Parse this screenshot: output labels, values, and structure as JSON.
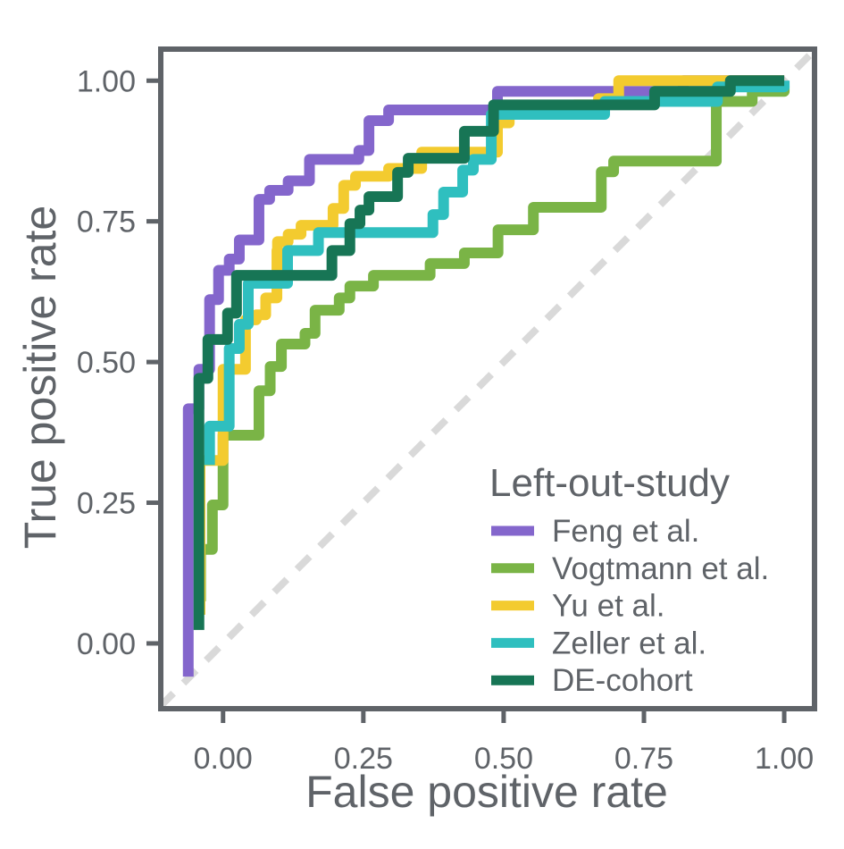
{
  "chart_data": {
    "type": "line",
    "title": "",
    "xlabel": "False positive rate",
    "ylabel": "True positive rate",
    "xlim": [
      -0.111,
      1.054
    ],
    "ylim": [
      -0.116,
      1.056
    ],
    "x_ticks": [
      "0.00",
      "0.25",
      "0.50",
      "0.75",
      "1.00"
    ],
    "y_ticks": [
      "0.00",
      "0.25",
      "0.50",
      "0.75",
      "1.00"
    ],
    "grid": false,
    "legend": {
      "title": "Left-out-study",
      "placement": "bottom-right"
    },
    "reference_line": {
      "style": "dashed",
      "color": "#d9d9d9",
      "from": [
        -0.111,
        -0.111
      ],
      "to": [
        1.054,
        1.054
      ]
    },
    "series": [
      {
        "name": "Feng et al.",
        "color": "#8466cc",
        "points": [
          [
            -0.062,
            -0.059
          ],
          [
            -0.062,
            0.417
          ],
          [
            -0.043,
            0.487
          ],
          [
            -0.024,
            0.611
          ],
          [
            -0.008,
            0.663
          ],
          [
            0.011,
            0.683
          ],
          [
            0.029,
            0.717
          ],
          [
            0.064,
            0.789
          ],
          [
            0.083,
            0.805
          ],
          [
            0.116,
            0.822
          ],
          [
            0.154,
            0.86
          ],
          [
            0.242,
            0.876
          ],
          [
            0.26,
            0.929
          ],
          [
            0.295,
            0.948
          ],
          [
            0.489,
            0.981
          ],
          [
            0.82,
            1.0
          ],
          [
            1.0,
            1.0
          ]
        ]
      },
      {
        "name": "Vogtmann et al.",
        "color": "#7ab446",
        "points": [
          [
            -0.04,
            0.075
          ],
          [
            -0.04,
            0.167
          ],
          [
            -0.019,
            0.246
          ],
          [
            0.0,
            0.37
          ],
          [
            0.064,
            0.449
          ],
          [
            0.084,
            0.492
          ],
          [
            0.104,
            0.532
          ],
          [
            0.146,
            0.551
          ],
          [
            0.164,
            0.592
          ],
          [
            0.207,
            0.614
          ],
          [
            0.226,
            0.635
          ],
          [
            0.268,
            0.654
          ],
          [
            0.369,
            0.675
          ],
          [
            0.43,
            0.694
          ],
          [
            0.49,
            0.735
          ],
          [
            0.553,
            0.775
          ],
          [
            0.674,
            0.838
          ],
          [
            0.696,
            0.857
          ],
          [
            0.879,
            0.963
          ],
          [
            0.943,
            0.981
          ],
          [
            1.0,
            0.99
          ]
        ]
      },
      {
        "name": "Yu et al.",
        "color": "#f3cb2f",
        "points": [
          [
            -0.041,
            0.051
          ],
          [
            -0.041,
            0.325
          ],
          [
            0.0,
            0.487
          ],
          [
            0.04,
            0.575
          ],
          [
            0.059,
            0.584
          ],
          [
            0.076,
            0.614
          ],
          [
            0.096,
            0.698
          ],
          [
            0.097,
            0.714
          ],
          [
            0.116,
            0.727
          ],
          [
            0.139,
            0.743
          ],
          [
            0.196,
            0.773
          ],
          [
            0.215,
            0.814
          ],
          [
            0.236,
            0.83
          ],
          [
            0.295,
            0.844
          ],
          [
            0.354,
            0.873
          ],
          [
            0.489,
            0.925
          ],
          [
            0.51,
            0.948
          ],
          [
            0.626,
            0.957
          ],
          [
            0.669,
            0.968
          ],
          [
            0.705,
            1.0
          ],
          [
            1.0,
            1.0
          ]
        ]
      },
      {
        "name": "Zeller et al.",
        "color": "#2fbfbf",
        "points": [
          [
            -0.024,
            0.317
          ],
          [
            -0.024,
            0.386
          ],
          [
            0.011,
            0.524
          ],
          [
            0.029,
            0.567
          ],
          [
            0.045,
            0.64
          ],
          [
            0.115,
            0.698
          ],
          [
            0.17,
            0.73
          ],
          [
            0.374,
            0.762
          ],
          [
            0.393,
            0.802
          ],
          [
            0.427,
            0.841
          ],
          [
            0.446,
            0.86
          ],
          [
            0.478,
            0.94
          ],
          [
            0.68,
            0.963
          ],
          [
            0.881,
            0.989
          ],
          [
            1.0,
            1.0
          ]
        ]
      },
      {
        "name": "DE-cohort",
        "color": "#177555",
        "points": [
          [
            -0.043,
            0.024
          ],
          [
            -0.043,
            0.471
          ],
          [
            -0.027,
            0.54
          ],
          [
            0.008,
            0.587
          ],
          [
            0.024,
            0.654
          ],
          [
            0.194,
            0.698
          ],
          [
            0.226,
            0.746
          ],
          [
            0.244,
            0.77
          ],
          [
            0.26,
            0.794
          ],
          [
            0.311,
            0.837
          ],
          [
            0.33,
            0.862
          ],
          [
            0.43,
            0.91
          ],
          [
            0.482,
            0.957
          ],
          [
            0.769,
            0.981
          ],
          [
            0.904,
            1.0
          ],
          [
            1.0,
            1.0
          ]
        ]
      }
    ]
  }
}
